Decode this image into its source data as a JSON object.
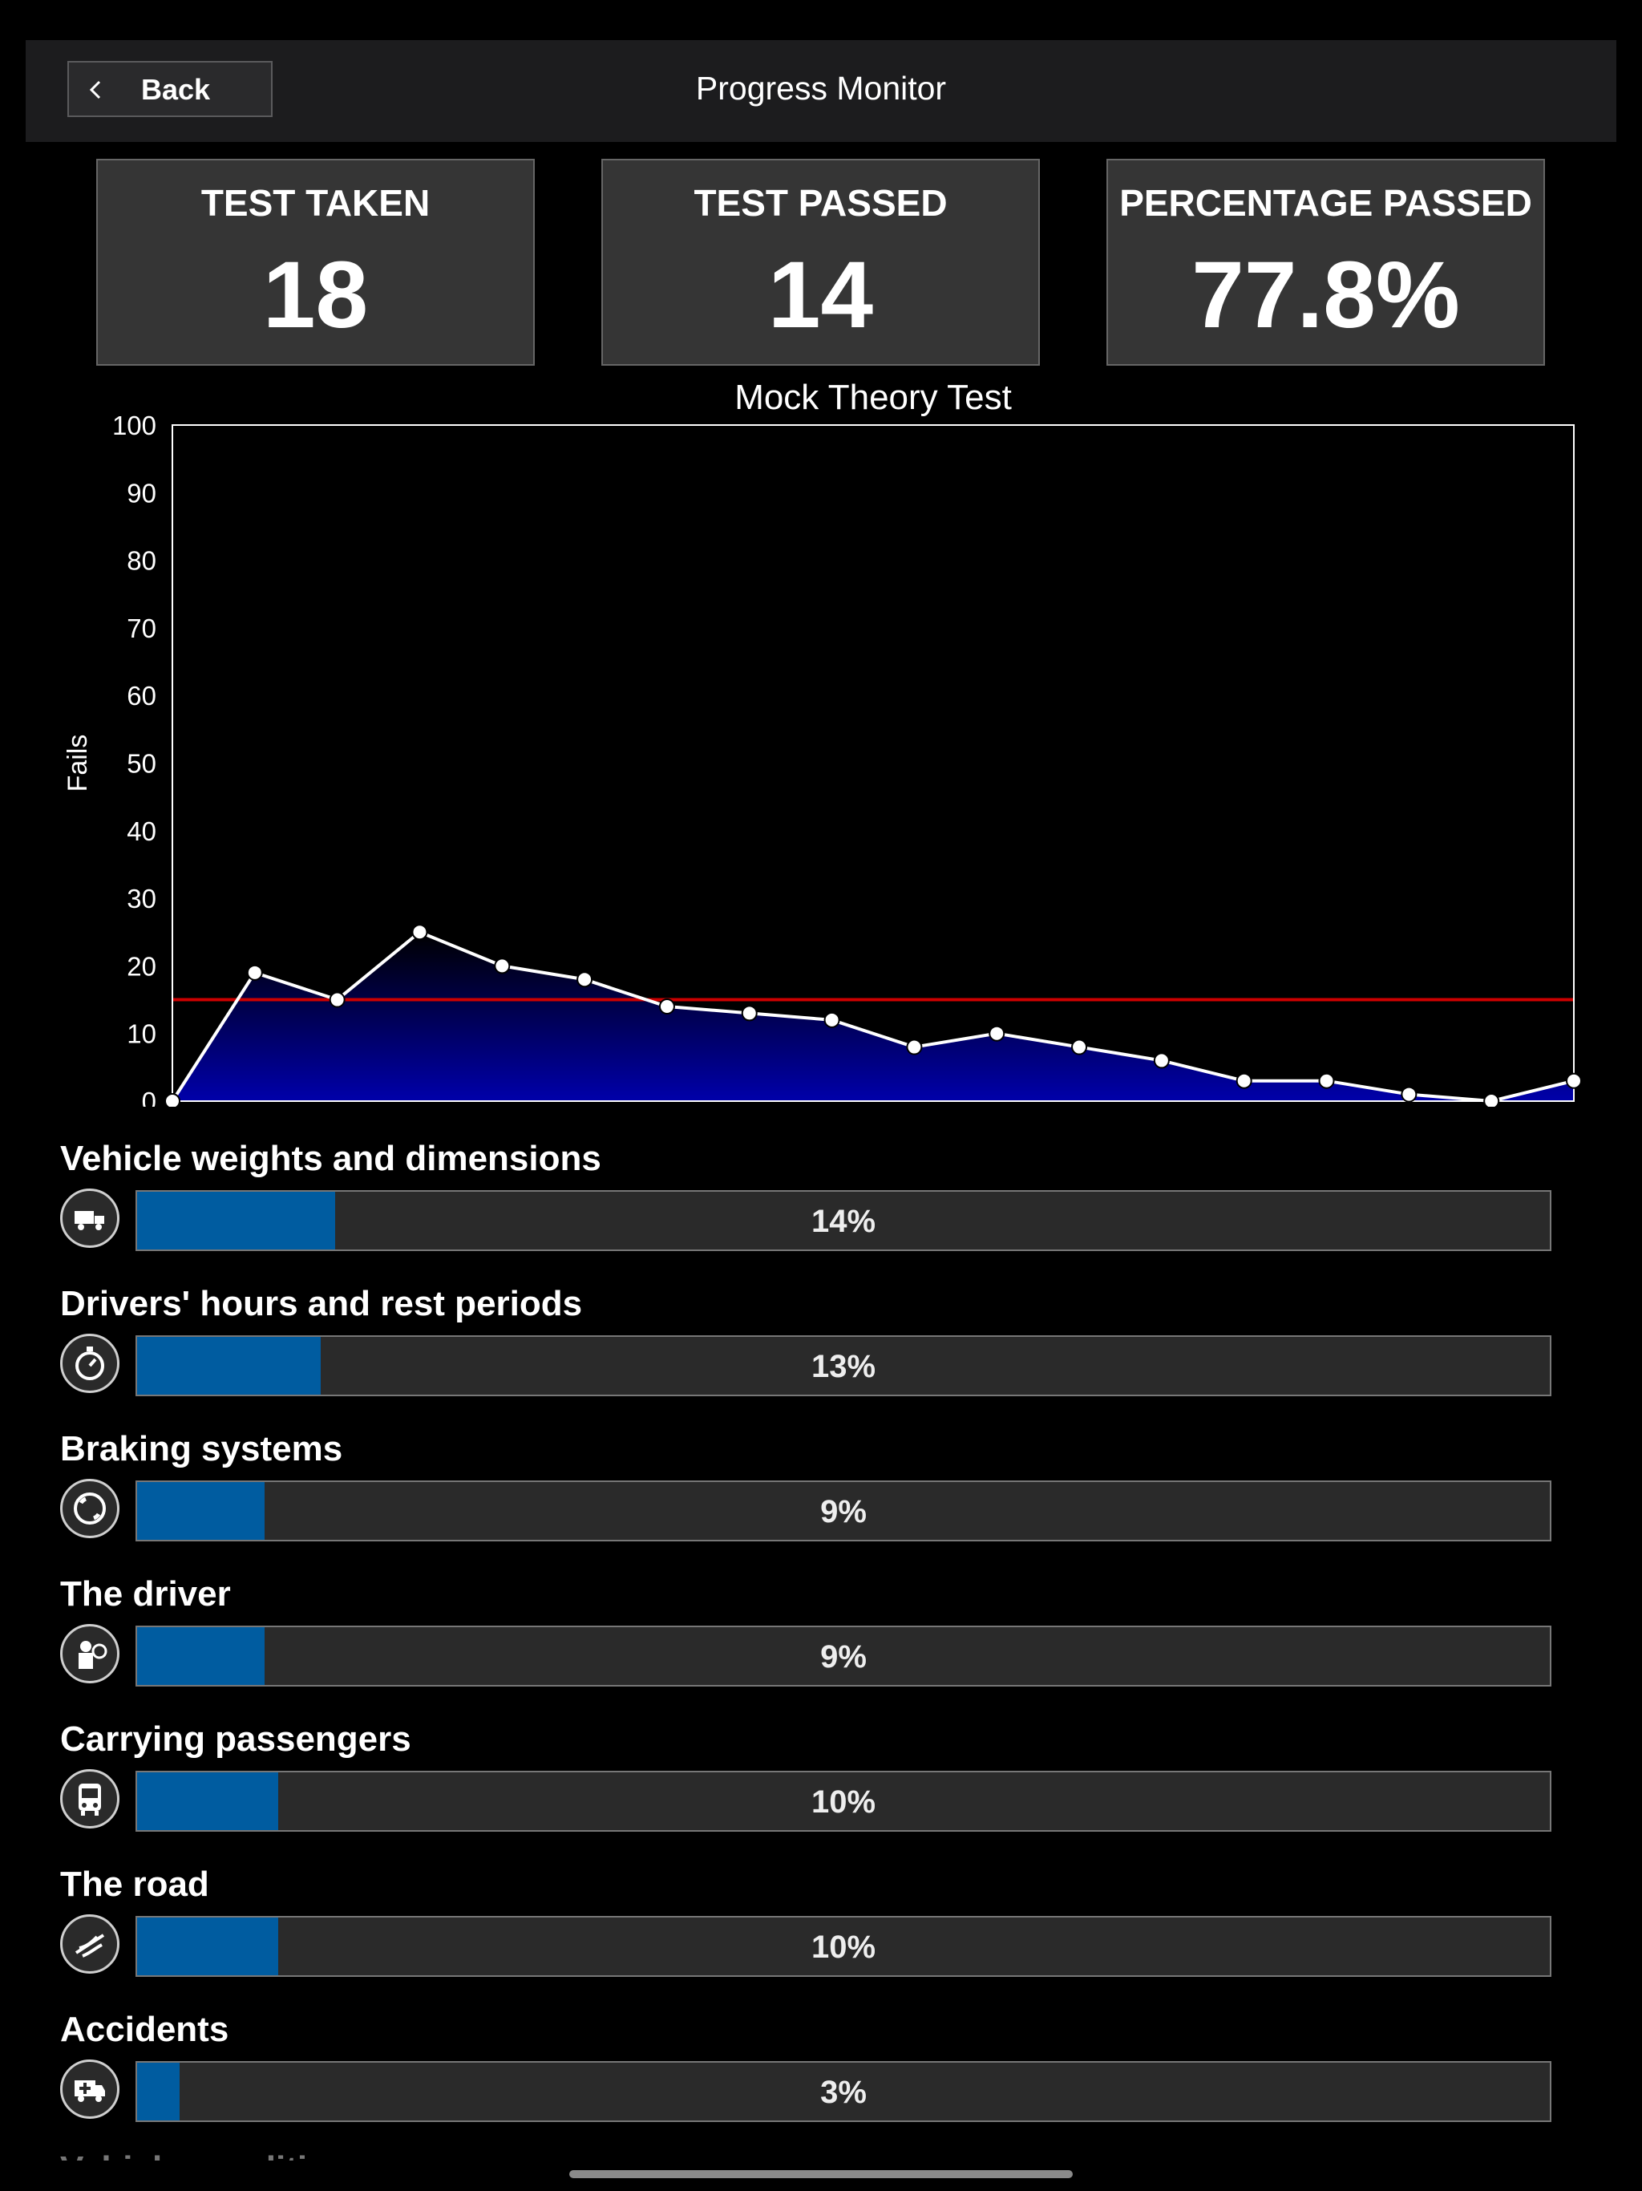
{
  "header": {
    "back_label": "Back",
    "title": "Progress Monitor"
  },
  "stats": [
    {
      "label": "TEST TAKEN",
      "value": "18"
    },
    {
      "label": "TEST PASSED",
      "value": "14"
    },
    {
      "label": "PERCENTAGE PASSED",
      "value": "77.8%"
    }
  ],
  "chart_data": {
    "type": "area",
    "title": "Mock Theory Test",
    "xlabel": "",
    "ylabel": "Fails",
    "ylim": [
      0,
      100
    ],
    "yticks": [
      "0",
      "10",
      "20",
      "30",
      "40",
      "50",
      "60",
      "70",
      "80",
      "90",
      "100"
    ],
    "grid": false,
    "series": [
      {
        "values": [
          0,
          19,
          15,
          25,
          20,
          18,
          14,
          13,
          12,
          8,
          10,
          8,
          6,
          3,
          3,
          1,
          0,
          3
        ]
      }
    ],
    "threshold": 15,
    "colors": {
      "line": "#ffffff",
      "fill": "#0000aa",
      "threshold": "#cc0000"
    }
  },
  "categories": [
    {
      "title": "Vehicle weights and dimensions",
      "icon": "truck-icon",
      "percent": 14,
      "label": "14%"
    },
    {
      "title": "Drivers' hours and rest periods",
      "icon": "stopwatch-icon",
      "percent": 13,
      "label": "13%"
    },
    {
      "title": "Braking systems",
      "icon": "brake-icon",
      "percent": 9,
      "label": "9%"
    },
    {
      "title": "The driver",
      "icon": "driver-icon",
      "percent": 9,
      "label": "9%"
    },
    {
      "title": "Carrying passengers",
      "icon": "bus-icon",
      "percent": 10,
      "label": "10%"
    },
    {
      "title": "The road",
      "icon": "road-icon",
      "percent": 10,
      "label": "10%"
    },
    {
      "title": "Accidents",
      "icon": "ambulance-icon",
      "percent": 3,
      "label": "3%"
    }
  ],
  "colors": {
    "bar_fill": "#005ca0"
  }
}
